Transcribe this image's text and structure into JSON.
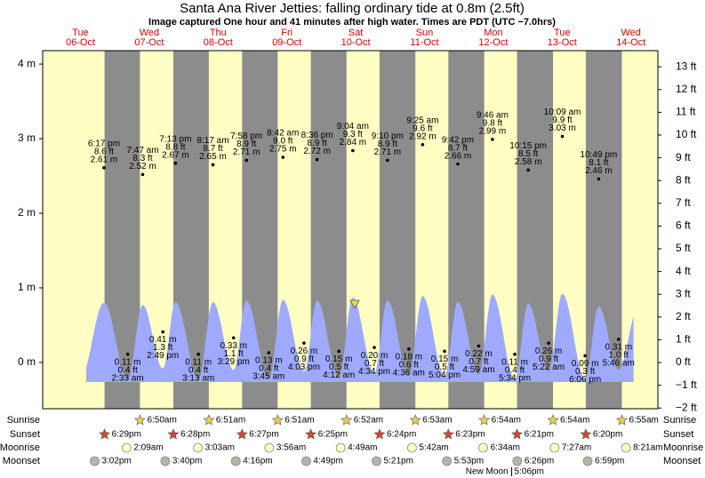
{
  "chart_data": {
    "type": "tide",
    "title": "Santa Ana River Jetties: falling  ordinary tide at 0.8m (2.5ft)",
    "subtitle": "Image captured One hour and 41 minutes after high water. Times are PDT (UTC −7.0hrs)",
    "ylim": [
      -0.62,
      4.18
    ],
    "yticks": [
      {
        "value": 0,
        "label": "0 m"
      },
      {
        "value": 1,
        "label": "1 m"
      },
      {
        "value": 2,
        "label": "2 m"
      },
      {
        "value": 3,
        "label": "3 m"
      },
      {
        "value": 4,
        "label": "4 m"
      }
    ],
    "y2lim": [
      -2.03,
      13.71
    ],
    "y2ticks": [
      {
        "value": -2,
        "label": "−2 ft"
      },
      {
        "value": -1,
        "label": "−1 ft"
      },
      {
        "value": 0,
        "label": "0 ft"
      },
      {
        "value": 1,
        "label": "1 ft"
      },
      {
        "value": 2,
        "label": "2 ft"
      },
      {
        "value": 3,
        "label": "3 ft"
      },
      {
        "value": 4,
        "label": "4 ft"
      },
      {
        "value": 5,
        "label": "5 ft"
      },
      {
        "value": 6,
        "label": "6 ft"
      },
      {
        "value": 7,
        "label": "7 ft"
      },
      {
        "value": 8,
        "label": "8 ft"
      },
      {
        "value": 9,
        "label": "9 ft"
      },
      {
        "value": 10,
        "label": "10 ft"
      },
      {
        "value": 11,
        "label": "11 ft"
      },
      {
        "value": 12,
        "label": "12 ft"
      },
      {
        "value": 13,
        "label": "13 ft"
      }
    ],
    "row_labels": {
      "sunrise": "Sunrise",
      "sunset": "Sunset",
      "moonrise": "Moonrise",
      "moonset": "Moonset"
    },
    "colors": {
      "day": "#ffffc4",
      "night": "#8c8c8c",
      "water": "#9faaff",
      "date": "#e00000"
    },
    "days": [
      {
        "weekday": "Tue",
        "date": "06-Oct",
        "sunset": "6:29pm",
        "moonset": "3:02pm",
        "tides": [
          {
            "kind": "high",
            "time": "6:17 pm",
            "m": 2.61,
            "m_label": "2.61 m",
            "ft_label": "8.6 ft",
            "curve_m": 0.8
          }
        ]
      },
      {
        "weekday": "Wed",
        "date": "07-Oct",
        "sunrise": "6:50am",
        "sunset": "6:28pm",
        "moonrise": "2:09am",
        "moonset": "3:40pm",
        "tides": [
          {
            "kind": "low",
            "time": "2:33 am",
            "m": 0.11,
            "m_label": "0.11 m",
            "ft_label": "0.4 ft",
            "curve_m": -0.22
          },
          {
            "kind": "high",
            "time": "7:47 am",
            "m": 2.52,
            "m_label": "2.52 m",
            "ft_label": "8.3 ft",
            "curve_m": 0.77
          },
          {
            "kind": "low",
            "time": "2:49 pm",
            "m": 0.41,
            "m_label": "0.41 m",
            "ft_label": "1.3 ft",
            "curve_m": -0.08
          },
          {
            "kind": "high",
            "time": "7:13 pm",
            "m": 2.67,
            "m_label": "2.67 m",
            "ft_label": "8.8 ft",
            "curve_m": 0.81
          }
        ]
      },
      {
        "weekday": "Thu",
        "date": "08-Oct",
        "sunrise": "6:51am",
        "sunset": "6:27pm",
        "moonrise": "3:03am",
        "moonset": "4:16pm",
        "tides": [
          {
            "kind": "low",
            "time": "3:13 am",
            "m": 0.11,
            "m_label": "0.11 m",
            "ft_label": "0.4 ft",
            "curve_m": -0.22
          },
          {
            "kind": "high",
            "time": "8:17 am",
            "m": 2.65,
            "m_label": "2.65 m",
            "ft_label": "8.7 ft",
            "curve_m": 0.81
          },
          {
            "kind": "low",
            "time": "3:29 pm",
            "m": 0.33,
            "m_label": "0.33 m",
            "ft_label": "1.1 ft",
            "curve_m": -0.1
          },
          {
            "kind": "high",
            "time": "7:58 pm",
            "m": 2.71,
            "m_label": "2.71 m",
            "ft_label": "8.9 ft",
            "curve_m": 0.83
          }
        ]
      },
      {
        "weekday": "Fri",
        "date": "09-Oct",
        "sunrise": "6:51am",
        "sunset": "6:25pm",
        "moonrise": "3:56am",
        "moonset": "4:49pm",
        "tides": [
          {
            "kind": "low",
            "time": "3:45 am",
            "m": 0.13,
            "m_label": "0.13 m",
            "ft_label": "0.4 ft",
            "curve_m": -0.22
          },
          {
            "kind": "high",
            "time": "8:42 am",
            "m": 2.75,
            "m_label": "2.75 m",
            "ft_label": "9.0 ft",
            "curve_m": 0.84
          },
          {
            "kind": "low",
            "time": "4:03 pm",
            "m": 0.26,
            "m_label": "0.26 m",
            "ft_label": "0.9 ft",
            "curve_m": -0.12
          },
          {
            "kind": "high",
            "time": "8:36 pm",
            "m": 2.72,
            "m_label": "2.72 m",
            "ft_label": "8.9 ft",
            "curve_m": 0.83
          }
        ]
      },
      {
        "weekday": "Sat",
        "date": "10-Oct",
        "sunrise": "6:52am",
        "sunset": "6:24pm",
        "moonrise": "4:49am",
        "moonset": "5:21pm",
        "tides": [
          {
            "kind": "low",
            "time": "4:12 am",
            "m": 0.15,
            "m_label": "0.15 m",
            "ft_label": "0.5 ft",
            "curve_m": -0.2
          },
          {
            "kind": "high",
            "time": "9:04 am",
            "m": 2.84,
            "m_label": "2.84 m",
            "ft_label": "9.3 ft",
            "curve_m": 0.87
          },
          {
            "kind": "low",
            "time": "4:34 pm",
            "m": 0.2,
            "m_label": "0.20 m",
            "ft_label": "0.7 ft",
            "curve_m": -0.14
          },
          {
            "kind": "high",
            "time": "9:10 pm",
            "m": 2.71,
            "m_label": "2.71 m",
            "ft_label": "8.9 ft",
            "curve_m": 0.83
          }
        ]
      },
      {
        "weekday": "Sun",
        "date": "11-Oct",
        "sunrise": "6:53am",
        "sunset": "6:23pm",
        "moonrise": "5:42am",
        "moonset": "5:53pm",
        "tides": [
          {
            "kind": "low",
            "time": "4:36 am",
            "m": 0.18,
            "m_label": "0.18 m",
            "ft_label": "0.6 ft",
            "curve_m": -0.18
          },
          {
            "kind": "high",
            "time": "9:25 am",
            "m": 2.92,
            "m_label": "2.92 m",
            "ft_label": "9.6 ft",
            "curve_m": 0.89
          },
          {
            "kind": "low",
            "time": "5:04 pm",
            "m": 0.15,
            "m_label": "0.15 m",
            "ft_label": "0.5 ft",
            "curve_m": -0.18
          },
          {
            "kind": "high",
            "time": "9:42 pm",
            "m": 2.66,
            "m_label": "2.66 m",
            "ft_label": "8.7 ft",
            "curve_m": 0.81
          }
        ]
      },
      {
        "weekday": "Mon",
        "date": "12-Oct",
        "sunrise": "6:54am",
        "sunset": "6:21pm",
        "moonrise": "6:34am",
        "moonset": "6:26pm",
        "phase": "New Moon",
        "phase_time": "5:06pm",
        "tides": [
          {
            "kind": "low",
            "time": "4:59 am",
            "m": 0.22,
            "m_label": "0.22 m",
            "ft_label": "0.7 ft",
            "curve_m": -0.16
          },
          {
            "kind": "high",
            "time": "9:46 am",
            "m": 2.99,
            "m_label": "2.99 m",
            "ft_label": "9.8 ft",
            "curve_m": 0.91
          },
          {
            "kind": "low",
            "time": "5:34 pm",
            "m": 0.11,
            "m_label": "0.11 m",
            "ft_label": "0.4 ft",
            "curve_m": -0.22
          },
          {
            "kind": "high",
            "time": "10:15 pm",
            "m": 2.58,
            "m_label": "2.58 m",
            "ft_label": "8.5 ft",
            "curve_m": 0.79
          }
        ]
      },
      {
        "weekday": "Tue",
        "date": "13-Oct",
        "sunrise": "6:54am",
        "sunset": "6:20pm",
        "moonrise": "7:27am",
        "moonset": "6:59pm",
        "tides": [
          {
            "kind": "low",
            "time": "5:22 am",
            "m": 0.26,
            "m_label": "0.26 m",
            "ft_label": "0.9 ft",
            "curve_m": -0.12
          },
          {
            "kind": "high",
            "time": "10:09 am",
            "m": 3.03,
            "m_label": "3.03 m",
            "ft_label": "9.9 ft",
            "curve_m": 0.92
          },
          {
            "kind": "low",
            "time": "6:06 pm",
            "m": 0.09,
            "m_label": "0.09 m",
            "ft_label": "0.3 ft",
            "curve_m": -0.22
          },
          {
            "kind": "high",
            "time": "10:49 pm",
            "m": 2.46,
            "m_label": "2.46 m",
            "ft_label": "8.1 ft",
            "curve_m": 0.75
          }
        ]
      },
      {
        "weekday": "Wed",
        "date": "14-Oct",
        "sunrise": "6:55am",
        "moonrise": "8:21am",
        "tides": [
          {
            "kind": "low",
            "time": "5:46 am",
            "m": 0.31,
            "m_label": "0.31 m",
            "ft_label": "1.0 ft",
            "curve_m": -0.1
          }
        ]
      }
    ]
  }
}
